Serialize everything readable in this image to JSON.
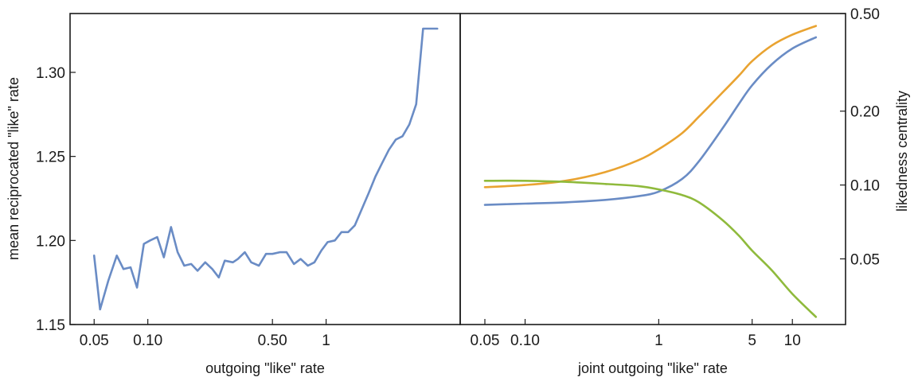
{
  "chart_data": [
    {
      "type": "line",
      "panel": "left",
      "xscale": "log",
      "xlim": [
        0.045,
        4.6
      ],
      "ylim": [
        1.15,
        1.335
      ],
      "xlabel": "outgoing \"like\" rate",
      "ylabel": "mean reciprocated \"like\" rate",
      "xticks": [
        {
          "value": 0.05,
          "label": "0.05"
        },
        {
          "value": 0.1,
          "label": "0.10"
        },
        {
          "value": 0.5,
          "label": "0.50"
        },
        {
          "value": 1,
          "label": "1"
        }
      ],
      "yticks": [
        {
          "value": 1.15,
          "label": "1.15"
        },
        {
          "value": 1.2,
          "label": "1.20"
        },
        {
          "value": 1.25,
          "label": "1.25"
        },
        {
          "value": 1.3,
          "label": "1.30"
        }
      ],
      "grid": false,
      "series": [
        {
          "color": "#6a8cc5",
          "x": [
            0.05,
            0.054,
            0.06,
            0.067,
            0.073,
            0.08,
            0.087,
            0.095,
            0.103,
            0.113,
            0.123,
            0.135,
            0.147,
            0.16,
            0.175,
            0.19,
            0.21,
            0.23,
            0.25,
            0.27,
            0.3,
            0.32,
            0.35,
            0.38,
            0.42,
            0.46,
            0.5,
            0.55,
            0.6,
            0.66,
            0.72,
            0.79,
            0.86,
            0.94,
            1.02,
            1.12,
            1.22,
            1.33,
            1.45,
            1.59,
            1.73,
            1.89,
            2.06,
            2.25,
            2.46,
            2.68,
            2.93,
            3.2,
            3.5,
            3.83,
            4.2
          ],
          "y": [
            1.191,
            1.159,
            1.176,
            1.191,
            1.183,
            1.184,
            1.172,
            1.198,
            1.2,
            1.202,
            1.19,
            1.208,
            1.193,
            1.185,
            1.186,
            1.182,
            1.187,
            1.183,
            1.178,
            1.188,
            1.187,
            1.189,
            1.193,
            1.187,
            1.185,
            1.192,
            1.192,
            1.193,
            1.193,
            1.186,
            1.189,
            1.185,
            1.187,
            1.194,
            1.199,
            1.2,
            1.205,
            1.205,
            1.209,
            1.219,
            1.228,
            1.238,
            1.246,
            1.254,
            1.26,
            1.262,
            1.269,
            1.281,
            1.326,
            1.326,
            1.326
          ]
        }
      ]
    },
    {
      "type": "line",
      "panel": "right",
      "xscale": "log",
      "yscale": "log",
      "xlim": [
        0.043,
        19
      ],
      "ylim": [
        0.027,
        0.5
      ],
      "xlabel": "joint outgoing \"like\" rate",
      "ylabel": "likedness centrality",
      "xticks": [
        {
          "value": 0.05,
          "label": "0.05"
        },
        {
          "value": 0.1,
          "label": "0.10"
        },
        {
          "value": 1,
          "label": "1"
        },
        {
          "value": 5,
          "label": "5"
        },
        {
          "value": 10,
          "label": "10"
        }
      ],
      "yticks": [
        {
          "value": 0.05,
          "label": "0.05"
        },
        {
          "value": 0.1,
          "label": "0.10"
        },
        {
          "value": 0.2,
          "label": "0.20"
        },
        {
          "value": 0.5,
          "label": "0.50"
        }
      ],
      "grid": false,
      "series": [
        {
          "color": "#e9a331",
          "x": [
            0.05,
            0.1,
            0.2,
            0.4,
            0.7,
            1,
            1.5,
            2,
            3,
            4,
            5,
            7,
            10,
            15
          ],
          "y": [
            0.098,
            0.1,
            0.104,
            0.113,
            0.126,
            0.14,
            0.163,
            0.19,
            0.238,
            0.28,
            0.32,
            0.37,
            0.41,
            0.445
          ]
        },
        {
          "color": "#6a8cc5",
          "x": [
            0.05,
            0.1,
            0.2,
            0.4,
            0.7,
            1,
            1.5,
            2,
            3,
            4,
            5,
            7,
            10,
            15
          ],
          "y": [
            0.083,
            0.084,
            0.085,
            0.087,
            0.09,
            0.094,
            0.106,
            0.125,
            0.17,
            0.215,
            0.255,
            0.31,
            0.36,
            0.4
          ]
        },
        {
          "color": "#8fba3c",
          "x": [
            0.05,
            0.1,
            0.2,
            0.4,
            0.7,
            1,
            1.5,
            2,
            3,
            4,
            5,
            7,
            10,
            15
          ],
          "y": [
            0.104,
            0.104,
            0.103,
            0.101,
            0.099,
            0.096,
            0.091,
            0.085,
            0.072,
            0.062,
            0.054,
            0.045,
            0.036,
            0.029
          ]
        }
      ]
    }
  ]
}
